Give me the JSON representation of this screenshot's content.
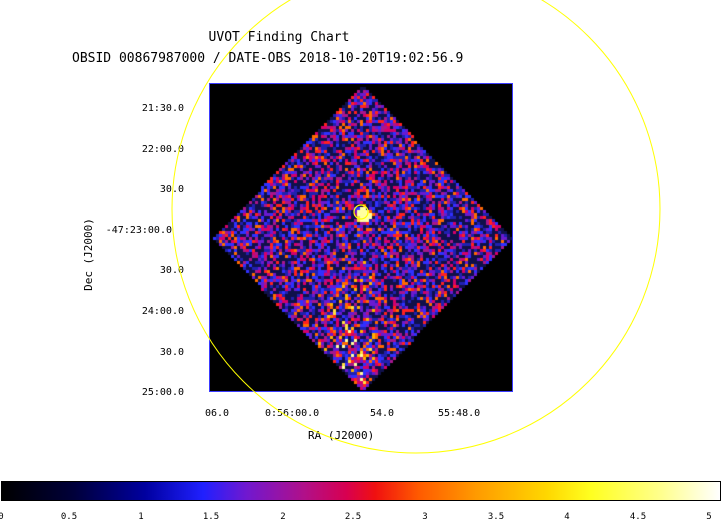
{
  "header": {
    "title": "UVOT Finding Chart",
    "subtitle": "OBSID 00867987000 / DATE-OBS 2018-10-20T19:02:56.9"
  },
  "axes": {
    "y_title": "Dec (J2000)",
    "x_title": "RA (J2000)",
    "y_ticks": [
      "21:30.0",
      "22:00.0",
      "30.0",
      "-47:23:00.0",
      "30.0",
      "24:00.0",
      "30.0",
      "25:00.0"
    ],
    "x_ticks": [
      "06.0",
      "0:56:00.0",
      "54.0",
      "55:48.0"
    ]
  },
  "colorbar": {
    "ticks": [
      "0",
      "0.5",
      "1",
      "1.5",
      "2",
      "2.5",
      "3",
      "3.5",
      "4",
      "4.5",
      "5"
    ]
  },
  "colors": {
    "circle": "#ffff00",
    "frame_border": "#3a3aff"
  }
}
